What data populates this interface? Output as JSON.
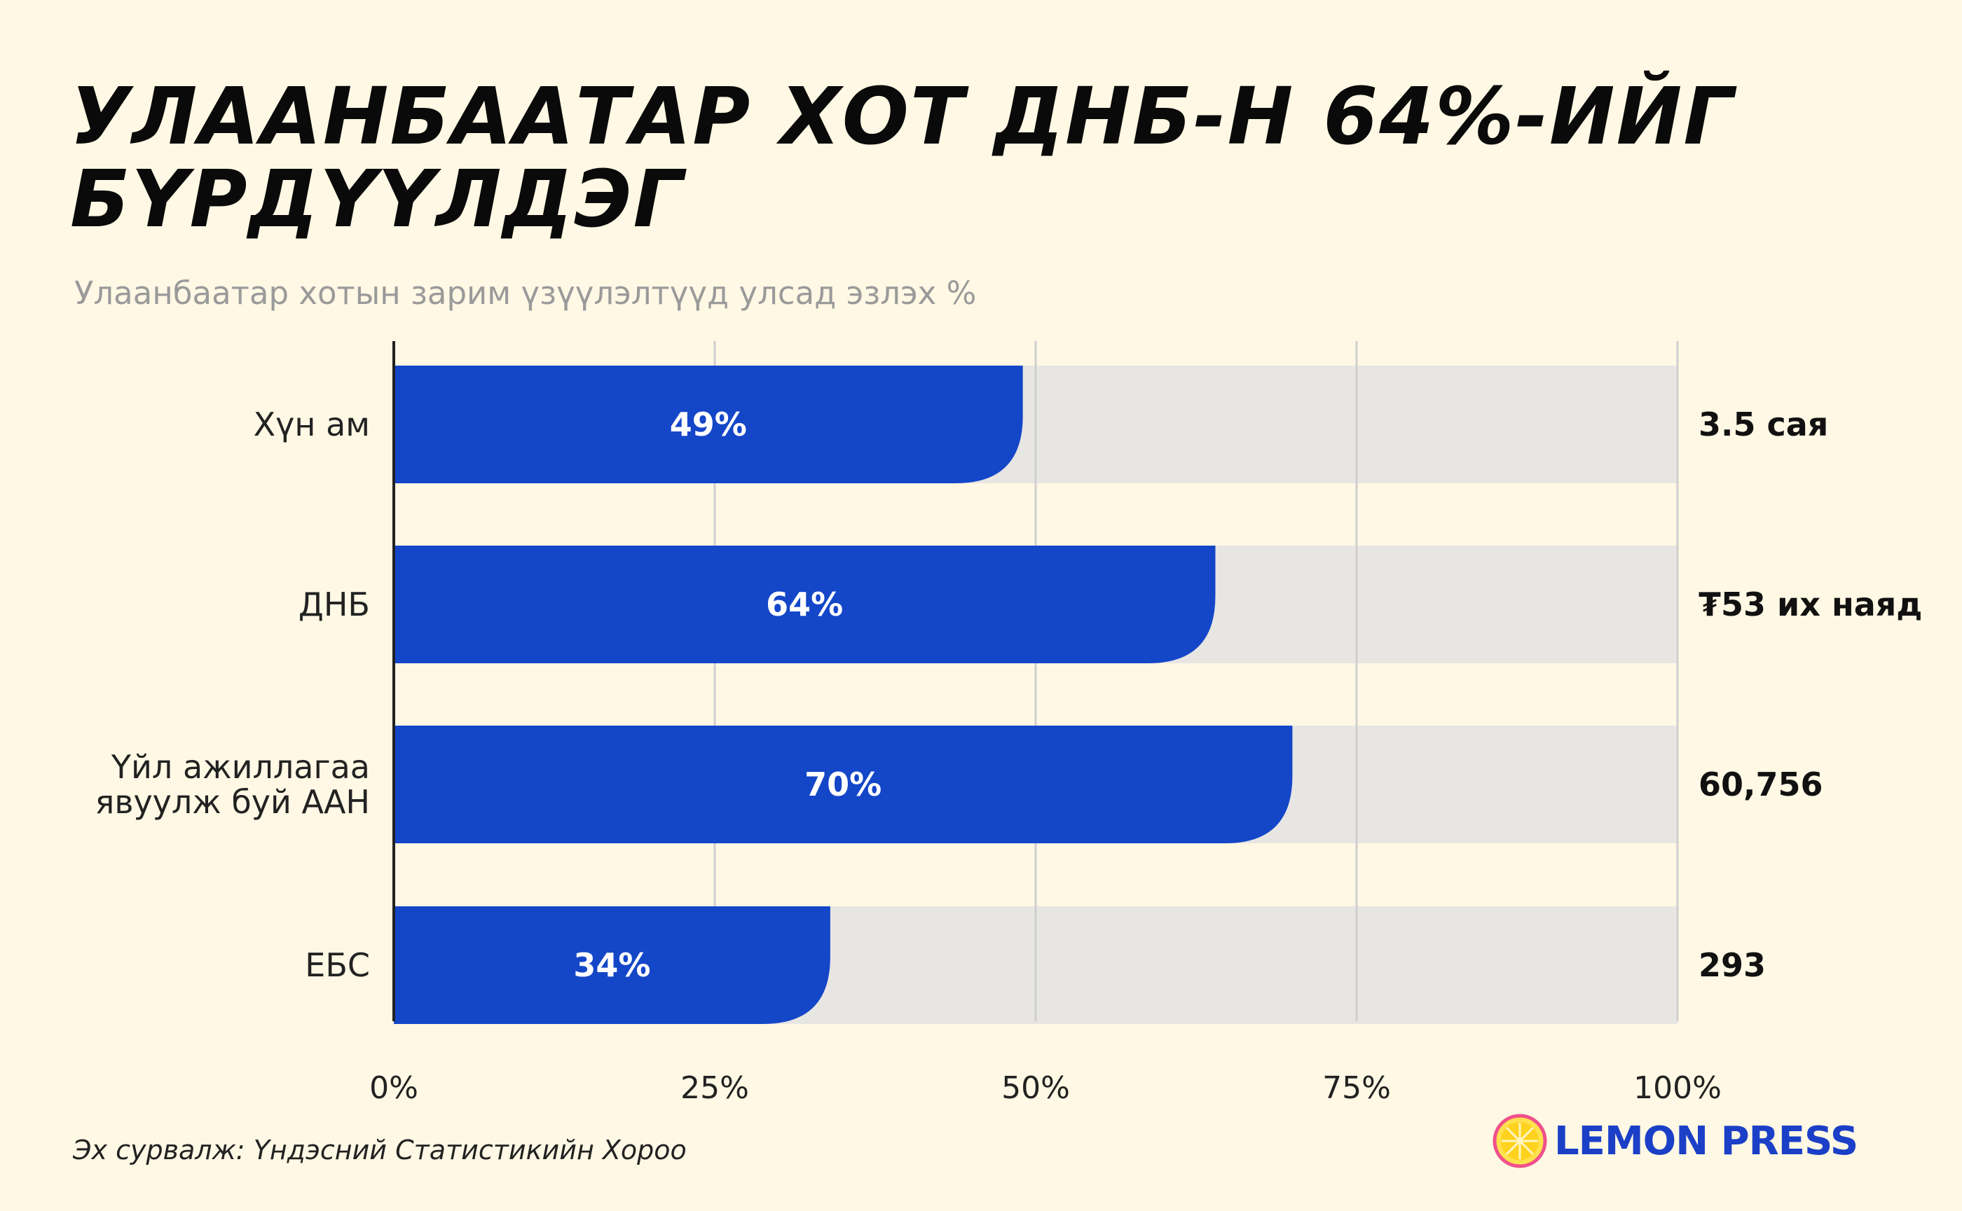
{
  "title": "УЛААНБААТАР ХОТ ДНБ-Н 64%-ИЙГ БҮРДҮҮЛДЭГ",
  "subtitle": "Улаанбаатар хотын зарим үзүүлэлтүүд улсад эзлэх %",
  "source": "Эх сурвалж: Үндэсний Статистикийн Хороо",
  "logo": {
    "text": "LEMON PRESS"
  },
  "colors": {
    "background": "#fff8e4",
    "bar": "#1446c8",
    "track": "#e8e6e3",
    "grid": "#cfcfcf",
    "axis": "#222222"
  },
  "chart_data": {
    "type": "bar",
    "orientation": "horizontal",
    "categories": [
      "Хүн ам",
      "ДНБ",
      "Үйл ажиллагаа явуулж буй ААН",
      "ЕБС"
    ],
    "values": [
      49,
      64,
      70,
      34
    ],
    "value_labels": [
      "49%",
      "64%",
      "70%",
      "34%"
    ],
    "right_labels": [
      "3.5 сая",
      "₮53 их наяд",
      "60,756",
      "293"
    ],
    "xlim": [
      0,
      100
    ],
    "xticks": [
      0,
      25,
      50,
      75,
      100
    ],
    "xtick_labels": [
      "0%",
      "25%",
      "50%",
      "75%",
      "100%"
    ],
    "grid": true
  }
}
